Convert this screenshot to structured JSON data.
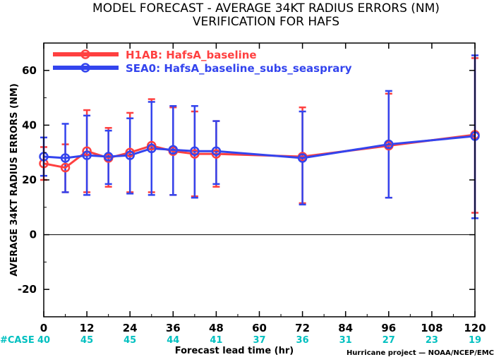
{
  "chart_data": {
    "type": "line",
    "title": "MODEL FORECAST - AVERAGE 34KT RADIUS ERRORS (NM)",
    "subtitle": "VERIFICATION FOR HAFS",
    "xlabel": "Forecast lead time (hr)",
    "ylabel": "AVERAGE 34KT RADIUS ERRORS (NM)",
    "xlim": [
      0,
      120
    ],
    "ylim": [
      -30,
      70
    ],
    "xticks": [
      0,
      12,
      24,
      36,
      48,
      60,
      72,
      84,
      96,
      108,
      120
    ],
    "yticks": [
      -20,
      0,
      20,
      40,
      60
    ],
    "zero_line": 0,
    "legend_position": "top-left",
    "case_label": "#CASE",
    "case_color": "#00c0c0",
    "cases": [
      {
        "x": 0,
        "n": "40"
      },
      {
        "x": 12,
        "n": "45"
      },
      {
        "x": 24,
        "n": "45"
      },
      {
        "x": 36,
        "n": "44"
      },
      {
        "x": 48,
        "n": "41"
      },
      {
        "x": 60,
        "n": "37"
      },
      {
        "x": 72,
        "n": "36"
      },
      {
        "x": 84,
        "n": "31"
      },
      {
        "x": 96,
        "n": "27"
      },
      {
        "x": 108,
        "n": "23"
      },
      {
        "x": 120,
        "n": "19"
      }
    ],
    "series": [
      {
        "name": "H1AB: HafsA_baseline",
        "color": "#ff4040",
        "x": [
          0,
          6,
          12,
          18,
          24,
          30,
          36,
          42,
          48,
          72,
          96,
          120
        ],
        "y": [
          26,
          24.5,
          30.5,
          28,
          30,
          32.5,
          30.5,
          29.5,
          29.5,
          28.5,
          32.5,
          36.5
        ],
        "err_low": [
          20,
          15.5,
          15.5,
          17.5,
          15.5,
          15.5,
          14.5,
          14,
          17.5,
          11.5,
          13.5,
          8
        ],
        "err_high": [
          32,
          33,
          45.5,
          39,
          44.5,
          49.5,
          46.5,
          45,
          41.5,
          46.5,
          51.5,
          64.5
        ]
      },
      {
        "name": "SEA0: HafsA_baseline_subs_seasprary",
        "color": "#3344ee",
        "x": [
          0,
          6,
          12,
          18,
          24,
          30,
          36,
          42,
          48,
          72,
          96,
          120
        ],
        "y": [
          28.5,
          28,
          29,
          28.5,
          29,
          31.5,
          31,
          30.5,
          30.5,
          28,
          33,
          36
        ],
        "err_low": [
          21.5,
          15.5,
          14.5,
          18.5,
          15,
          14.5,
          14.5,
          13.5,
          18.5,
          11,
          13.5,
          6
        ],
        "err_high": [
          35.5,
          40.5,
          43.5,
          38,
          42.5,
          48.5,
          47,
          47,
          41.5,
          45,
          52.5,
          65.5
        ]
      }
    ]
  },
  "credit": "Hurricane project — NOAA/NCEP/EMC"
}
